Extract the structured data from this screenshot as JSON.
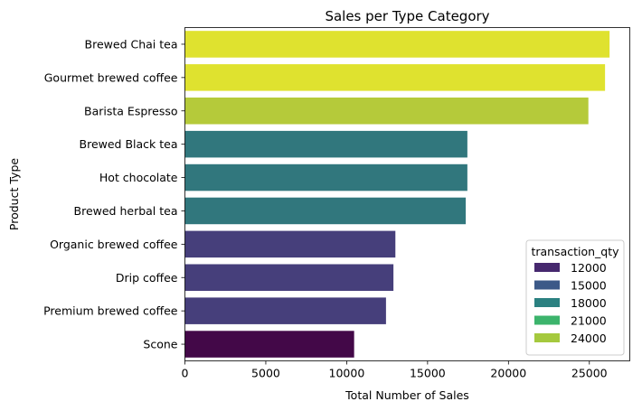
{
  "chart_data": {
    "type": "bar",
    "orientation": "horizontal",
    "title": "Sales per Type Category",
    "xlabel": "Total Number of Sales",
    "ylabel": "Product Type",
    "xlim": [
      0,
      27500
    ],
    "xticks": [
      0,
      5000,
      10000,
      15000,
      20000,
      25000
    ],
    "grid": false,
    "categories": [
      "Brewed Chai tea",
      "Gourmet brewed coffee",
      "Barista Espresso",
      "Brewed Black tea",
      "Hot chocolate",
      "Brewed herbal tea",
      "Organic brewed coffee",
      "Drip coffee",
      "Premium brewed coffee",
      "Scone"
    ],
    "values": [
      26250,
      25970,
      24940,
      17460,
      17460,
      17360,
      13010,
      12890,
      12430,
      10460
    ],
    "bar_colors": [
      "#dfe22f",
      "#dfe22f",
      "#b5ca3a",
      "#31777d",
      "#31777d",
      "#31777d",
      "#463f7b",
      "#463f7b",
      "#463f7b",
      "#430848"
    ],
    "legend": {
      "title": "transaction_qty",
      "position": "lower-right",
      "entries": [
        {
          "label": "12000",
          "color": "#46286e"
        },
        {
          "label": "15000",
          "color": "#3c5988"
        },
        {
          "label": "18000",
          "color": "#2b8181"
        },
        {
          "label": "21000",
          "color": "#3cb46c"
        },
        {
          "label": "24000",
          "color": "#a5c93e"
        }
      ]
    }
  }
}
